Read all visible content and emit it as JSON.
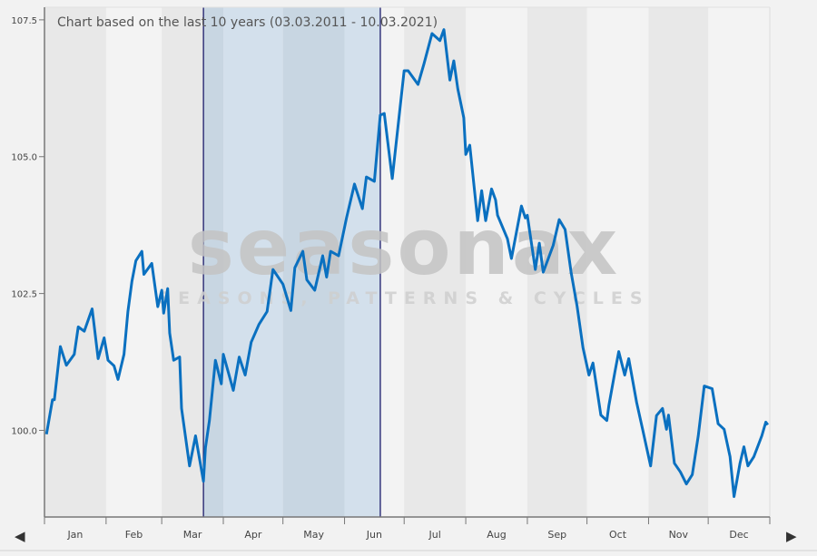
{
  "chart_data": {
    "type": "line",
    "title": "Chart based on the last 10 years (03.03.2011 - 10.03.2021)",
    "xlabel": "",
    "ylabel": "",
    "x_tick_labels": [
      "Jan",
      "Feb",
      "Mar",
      "Apr",
      "May",
      "Jun",
      "Jul",
      "Aug",
      "Sep",
      "Oct",
      "Nov",
      "Dec"
    ],
    "y_ticks": [
      100.0,
      102.5,
      105.0,
      107.5
    ],
    "y_tick_labels": [
      "100.0",
      "102.5",
      "105.0",
      "107.5"
    ],
    "ylim": [
      98.45,
      107.73
    ],
    "xlim": [
      "01-01",
      "12-31"
    ],
    "grid": false,
    "month_bands": "alternating",
    "highlight_range": [
      "03-22",
      "06-19"
    ],
    "series": [
      {
        "color": "#0a70c0",
        "points": [
          [
            "01-02",
            99.93
          ],
          [
            "01-05",
            100.56
          ],
          [
            "01-06",
            100.56
          ],
          [
            "01-09",
            101.53
          ],
          [
            "01-12",
            101.19
          ],
          [
            "01-16",
            101.39
          ],
          [
            "01-18",
            101.89
          ],
          [
            "01-21",
            101.81
          ],
          [
            "01-25",
            102.22
          ],
          [
            "01-28",
            101.31
          ],
          [
            "01-31",
            101.69
          ],
          [
            "02-02",
            101.28
          ],
          [
            "02-05",
            101.18
          ],
          [
            "02-07",
            100.93
          ],
          [
            "02-10",
            101.39
          ],
          [
            "02-12",
            102.17
          ],
          [
            "02-14",
            102.72
          ],
          [
            "02-16",
            103.1
          ],
          [
            "02-19",
            103.27
          ],
          [
            "02-20",
            102.85
          ],
          [
            "02-24",
            103.05
          ],
          [
            "02-27",
            102.26
          ],
          [
            "03-01",
            102.56
          ],
          [
            "03-02",
            102.14
          ],
          [
            "03-04",
            102.59
          ],
          [
            "03-05",
            101.78
          ],
          [
            "03-07",
            101.28
          ],
          [
            "03-10",
            101.34
          ],
          [
            "03-11",
            100.4
          ],
          [
            "03-15",
            99.35
          ],
          [
            "03-18",
            99.9
          ],
          [
            "03-22",
            99.07
          ],
          [
            "03-23",
            99.68
          ],
          [
            "03-25",
            100.18
          ],
          [
            "03-28",
            101.28
          ],
          [
            "03-31",
            100.85
          ],
          [
            "04-01",
            101.39
          ],
          [
            "04-06",
            100.73
          ],
          [
            "04-09",
            101.34
          ],
          [
            "04-12",
            101.01
          ],
          [
            "04-15",
            101.61
          ],
          [
            "04-19",
            101.94
          ],
          [
            "04-23",
            102.17
          ],
          [
            "04-26",
            102.94
          ],
          [
            "05-01",
            102.67
          ],
          [
            "05-05",
            102.19
          ],
          [
            "05-07",
            102.97
          ],
          [
            "05-11",
            103.27
          ],
          [
            "05-13",
            102.75
          ],
          [
            "05-17",
            102.56
          ],
          [
            "05-21",
            103.19
          ],
          [
            "05-23",
            102.8
          ],
          [
            "05-25",
            103.27
          ],
          [
            "05-29",
            103.19
          ],
          [
            "06-02",
            103.88
          ],
          [
            "06-06",
            104.5
          ],
          [
            "06-10",
            104.05
          ],
          [
            "06-12",
            104.63
          ],
          [
            "06-16",
            104.55
          ],
          [
            "06-19",
            105.76
          ],
          [
            "06-21",
            105.79
          ],
          [
            "06-25",
            104.6
          ],
          [
            "07-01",
            106.57
          ],
          [
            "07-03",
            106.57
          ],
          [
            "07-08",
            106.32
          ],
          [
            "07-11",
            106.7
          ],
          [
            "07-15",
            107.25
          ],
          [
            "07-19",
            107.12
          ],
          [
            "07-21",
            107.32
          ],
          [
            "07-24",
            106.4
          ],
          [
            "07-26",
            106.75
          ],
          [
            "07-28",
            106.24
          ],
          [
            "07-31",
            105.71
          ],
          [
            "08-01",
            105.04
          ],
          [
            "08-03",
            105.21
          ],
          [
            "08-07",
            103.83
          ],
          [
            "08-09",
            104.38
          ],
          [
            "08-11",
            103.83
          ],
          [
            "08-14",
            104.41
          ],
          [
            "08-16",
            104.21
          ],
          [
            "08-17",
            103.93
          ],
          [
            "08-22",
            103.5
          ],
          [
            "08-24",
            103.14
          ],
          [
            "08-29",
            104.1
          ],
          [
            "08-31",
            103.88
          ],
          [
            "09-01",
            103.93
          ],
          [
            "09-05",
            102.94
          ],
          [
            "09-07",
            103.42
          ],
          [
            "09-09",
            102.89
          ],
          [
            "09-14",
            103.38
          ],
          [
            "09-17",
            103.85
          ],
          [
            "09-20",
            103.67
          ],
          [
            "09-23",
            102.89
          ],
          [
            "09-26",
            102.27
          ],
          [
            "09-29",
            101.51
          ],
          [
            "10-02",
            101.01
          ],
          [
            "10-04",
            101.23
          ],
          [
            "10-08",
            100.28
          ],
          [
            "10-11",
            100.18
          ],
          [
            "10-12",
            100.45
          ],
          [
            "10-15",
            101.06
          ],
          [
            "10-17",
            101.44
          ],
          [
            "10-20",
            101.01
          ],
          [
            "10-22",
            101.31
          ],
          [
            "10-26",
            100.51
          ],
          [
            "10-29",
            100.02
          ],
          [
            "11-02",
            99.35
          ],
          [
            "11-05",
            100.27
          ],
          [
            "11-08",
            100.4
          ],
          [
            "11-10",
            100.02
          ],
          [
            "11-11",
            100.28
          ],
          [
            "11-14",
            99.4
          ],
          [
            "11-17",
            99.24
          ],
          [
            "11-20",
            99.02
          ],
          [
            "11-23",
            99.19
          ],
          [
            "11-26",
            99.9
          ],
          [
            "11-29",
            100.81
          ],
          [
            "12-03",
            100.76
          ],
          [
            "12-06",
            100.12
          ],
          [
            "12-09",
            100.02
          ],
          [
            "12-12",
            99.52
          ],
          [
            "12-14",
            98.79
          ],
          [
            "12-17",
            99.4
          ],
          [
            "12-19",
            99.7
          ],
          [
            "12-21",
            99.35
          ],
          [
            "12-24",
            99.52
          ],
          [
            "12-28",
            99.9
          ],
          [
            "12-30",
            100.15
          ],
          [
            "12-31",
            100.1
          ]
        ]
      }
    ]
  },
  "watermark": {
    "logo": "seasonax",
    "tagline": "SEASONS, PATTERNS & CYCLES"
  },
  "nav": {
    "prev_icon": "triangle-left-icon",
    "next_icon": "triangle-right-icon",
    "prev": "◀",
    "next": "▶"
  },
  "colors": {
    "band_dark": "#e8e8e8",
    "band_light": "#f3f3f3",
    "highlight_light": "#d3e0ec",
    "highlight_dark": "#c8d6e2",
    "highlight_border": "#1d1d6b",
    "line": "#0a70c0"
  }
}
